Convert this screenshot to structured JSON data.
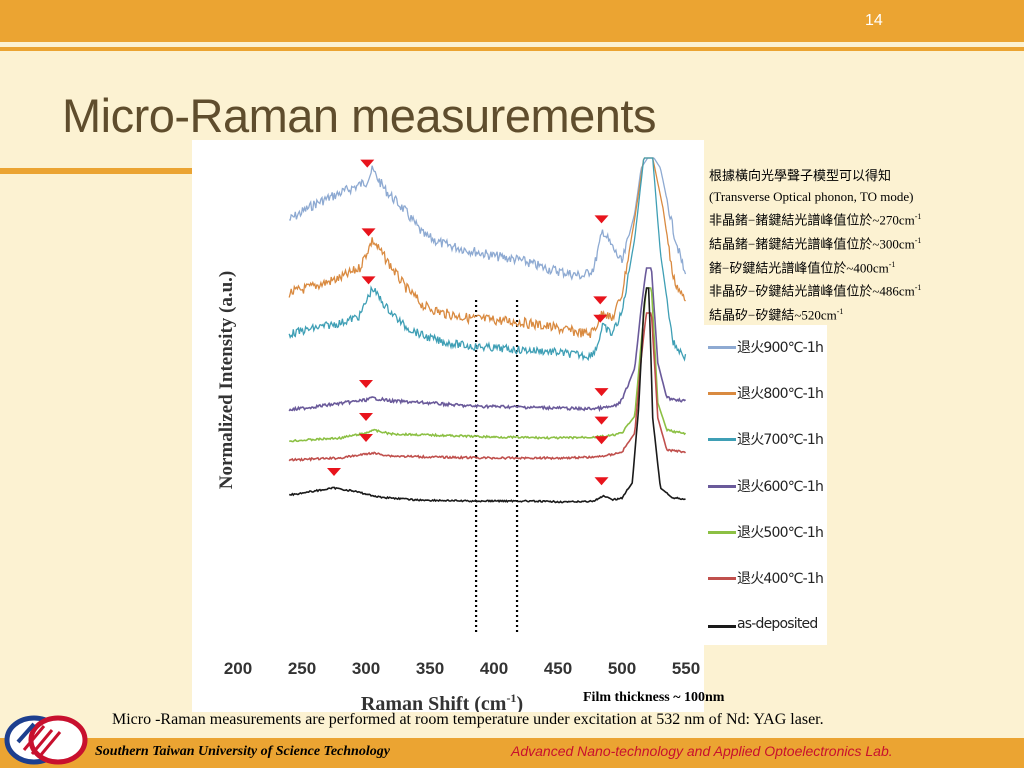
{
  "slide": {
    "page_number": "14",
    "title": "Micro-Raman measurements"
  },
  "notes": [
    {
      "text": "根據橫向光學聲子模型可以得知"
    },
    {
      "text": "(Transverse Optical phonon, TO mode)"
    },
    {
      "text": "非晶鍺−鍺鍵結光譜峰值位於~270cm",
      "sup": "-1"
    },
    {
      "text": "結晶鍺−鍺鍵結光譜峰值位於~300cm",
      "sup": "-1"
    },
    {
      "text": "鍺−矽鍵結光譜峰值位於~400cm",
      "sup": "-1"
    },
    {
      "text": "非晶矽−矽鍵結光譜峰值位於~486cm",
      "sup": "-1"
    },
    {
      "text": "結晶矽−矽鍵結~520cm",
      "sup": "-1"
    }
  ],
  "film_thickness": "Film thickness ~ 100nm",
  "caption": "Micro -Raman measurements are performed at room temperature under excitation at 532 nm of Nd: YAG laser.",
  "footer": {
    "left": "Southern Taiwan University of Science Technology",
    "right": "Advanced Nano-technology and Applied Optoelectronics Lab."
  },
  "colors": {
    "accent": "#eba432",
    "background": "#fcf2d2",
    "title": "#5f4d2d",
    "marker": "#e8141c",
    "footer_right": "#c8102e"
  },
  "chart_data": {
    "type": "line",
    "xlabel": "Raman Shift (cm",
    "xlabel_sup": "-1",
    "xlabel_end": ")",
    "ylabel": "Normalized Intensity (a.u.)",
    "xlim": [
      200,
      550
    ],
    "xticks": [
      200,
      250,
      300,
      350,
      400,
      450,
      500,
      550
    ],
    "grid": false,
    "legend_position": "right",
    "dashed_lines_x": [
      386,
      418
    ],
    "series": [
      {
        "name": "退火900℃-1h",
        "color": "#8eaad2",
        "noise": 5,
        "points": [
          [
            240,
            62
          ],
          [
            260,
            46
          ],
          [
            280,
            35
          ],
          [
            300,
            24
          ],
          [
            305,
            12
          ],
          [
            315,
            32
          ],
          [
            330,
            52
          ],
          [
            345,
            77
          ],
          [
            360,
            86
          ],
          [
            380,
            92
          ],
          [
            400,
            98
          ],
          [
            420,
            102
          ],
          [
            440,
            110
          ],
          [
            460,
            116
          ],
          [
            470,
            118
          ],
          [
            478,
            110
          ],
          [
            485,
            72
          ],
          [
            490,
            84
          ],
          [
            500,
            105
          ],
          [
            510,
            55
          ],
          [
            515,
            10
          ],
          [
            520,
            0
          ],
          [
            525,
            0
          ],
          [
            530,
            10
          ],
          [
            540,
            72
          ],
          [
            550,
            120
          ]
        ],
        "markers": [
          301,
          484
        ]
      },
      {
        "name": "退火800℃-1h",
        "color": "#d98a40",
        "noise": 5,
        "points": [
          [
            240,
            135
          ],
          [
            260,
            128
          ],
          [
            280,
            120
          ],
          [
            295,
            110
          ],
          [
            305,
            82
          ],
          [
            315,
            100
          ],
          [
            330,
            128
          ],
          [
            345,
            148
          ],
          [
            360,
            155
          ],
          [
            380,
            160
          ],
          [
            400,
            162
          ],
          [
            420,
            164
          ],
          [
            440,
            168
          ],
          [
            460,
            173
          ],
          [
            475,
            176
          ],
          [
            480,
            168
          ],
          [
            485,
            152
          ],
          [
            492,
            162
          ],
          [
            500,
            136
          ],
          [
            510,
            60
          ],
          [
            517,
            0
          ],
          [
            524,
            0
          ],
          [
            532,
            50
          ],
          [
            540,
            120
          ],
          [
            550,
            145
          ]
        ],
        "markers": [
          302,
          483
        ]
      },
      {
        "name": "退火700℃-1h",
        "color": "#3f9fb5",
        "noise": 4,
        "points": [
          [
            240,
            176
          ],
          [
            260,
            170
          ],
          [
            280,
            165
          ],
          [
            295,
            158
          ],
          [
            305,
            130
          ],
          [
            315,
            148
          ],
          [
            330,
            168
          ],
          [
            345,
            178
          ],
          [
            360,
            184
          ],
          [
            380,
            188
          ],
          [
            400,
            190
          ],
          [
            420,
            192
          ],
          [
            440,
            193
          ],
          [
            460,
            196
          ],
          [
            475,
            198
          ],
          [
            480,
            190
          ],
          [
            485,
            168
          ],
          [
            492,
            176
          ],
          [
            500,
            155
          ],
          [
            510,
            80
          ],
          [
            517,
            0
          ],
          [
            524,
            0
          ],
          [
            530,
            95
          ],
          [
            540,
            185
          ],
          [
            550,
            200
          ]
        ],
        "markers": [
          302,
          483
        ]
      },
      {
        "name": "退火600℃-1h",
        "color": "#6a5a9a",
        "noise": 1.5,
        "points": [
          [
            240,
            252
          ],
          [
            270,
            247
          ],
          [
            300,
            242
          ],
          [
            305,
            240
          ],
          [
            320,
            243
          ],
          [
            350,
            245
          ],
          [
            380,
            248
          ],
          [
            420,
            249
          ],
          [
            450,
            250
          ],
          [
            470,
            251
          ],
          [
            485,
            250
          ],
          [
            495,
            248
          ],
          [
            500,
            242
          ],
          [
            510,
            210
          ],
          [
            515,
            150
          ],
          [
            519,
            110
          ],
          [
            523,
            110
          ],
          [
            528,
            205
          ],
          [
            535,
            240
          ],
          [
            550,
            243
          ]
        ],
        "markers": [
          300,
          484
        ]
      },
      {
        "name": "退火500℃-1h",
        "color": "#8cc044",
        "noise": 1,
        "points": [
          [
            240,
            283
          ],
          [
            280,
            280
          ],
          [
            300,
            275
          ],
          [
            305,
            272
          ],
          [
            320,
            276
          ],
          [
            350,
            277
          ],
          [
            400,
            279
          ],
          [
            450,
            280
          ],
          [
            480,
            279
          ],
          [
            490,
            278
          ],
          [
            500,
            275
          ],
          [
            510,
            258
          ],
          [
            515,
            185
          ],
          [
            519,
            130
          ],
          [
            523,
            130
          ],
          [
            528,
            245
          ],
          [
            535,
            272
          ],
          [
            550,
            276
          ]
        ],
        "markers": [
          300,
          484
        ]
      },
      {
        "name": "退火400℃-1h",
        "color": "#c0504d",
        "noise": 1,
        "points": [
          [
            240,
            302
          ],
          [
            280,
            300
          ],
          [
            300,
            296
          ],
          [
            305,
            295
          ],
          [
            320,
            298
          ],
          [
            350,
            299
          ],
          [
            400,
            300
          ],
          [
            450,
            300
          ],
          [
            480,
            299
          ],
          [
            490,
            297
          ],
          [
            500,
            294
          ],
          [
            510,
            275
          ],
          [
            515,
            200
          ],
          [
            519,
            155
          ],
          [
            523,
            155
          ],
          [
            528,
            260
          ],
          [
            535,
            292
          ],
          [
            550,
            294
          ]
        ],
        "markers": [
          300,
          484
        ]
      },
      {
        "name": "as-deposited",
        "color": "#1a1a1a",
        "noise": 0.8,
        "points": [
          [
            240,
            337
          ],
          [
            260,
            333
          ],
          [
            275,
            330
          ],
          [
            290,
            333
          ],
          [
            310,
            339
          ],
          [
            340,
            342
          ],
          [
            380,
            343
          ],
          [
            420,
            343
          ],
          [
            460,
            344
          ],
          [
            478,
            343
          ],
          [
            486,
            338
          ],
          [
            492,
            342
          ],
          [
            500,
            340
          ],
          [
            508,
            325
          ],
          [
            513,
            250
          ],
          [
            517,
            150
          ],
          [
            519,
            130
          ],
          [
            521,
            130
          ],
          [
            524,
            260
          ],
          [
            530,
            330
          ],
          [
            540,
            340
          ],
          [
            550,
            341
          ]
        ],
        "markers": [
          275,
          484
        ]
      }
    ]
  }
}
